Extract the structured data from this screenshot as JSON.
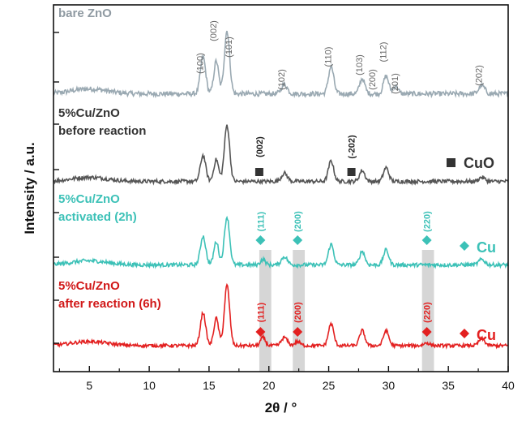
{
  "chart_data": {
    "type": "line",
    "title": "",
    "xlabel": "2θ / °",
    "ylabel": "Intensity / a.u.",
    "xlim": [
      2,
      40
    ],
    "x_ticks": [
      5,
      10,
      15,
      20,
      25,
      30,
      35,
      40
    ],
    "x_tick_labels": [
      "5",
      "10",
      "15",
      "20",
      "25",
      "30",
      "35",
      "40"
    ],
    "y_tick_labels_visible": false,
    "grid": false,
    "highlight_bands_2theta": [
      [
        19.2,
        20.2
      ],
      [
        22.0,
        23.0
      ],
      [
        32.8,
        33.8
      ]
    ],
    "series": [
      {
        "id": "bare",
        "label_lines": [
          "bare ZnO"
        ],
        "color": "#9aa9b2",
        "label_color": "#8f9aa2",
        "baseline": 1.0,
        "noise": 0.09,
        "peaks": [
          {
            "x": 5.0,
            "h": 0.18,
            "w": 1.5
          },
          {
            "x": 14.5,
            "h": 1.35,
            "w": 0.22
          },
          {
            "x": 15.6,
            "h": 1.2,
            "w": 0.2
          },
          {
            "x": 16.5,
            "h": 2.3,
            "w": 0.22
          },
          {
            "x": 21.3,
            "h": 0.35,
            "w": 0.25
          },
          {
            "x": 25.2,
            "h": 1.0,
            "w": 0.22
          },
          {
            "x": 27.8,
            "h": 0.55,
            "w": 0.22
          },
          {
            "x": 29.8,
            "h": 0.65,
            "w": 0.22
          },
          {
            "x": 30.6,
            "h": 0.3,
            "w": 0.2
          },
          {
            "x": 37.8,
            "h": 0.3,
            "w": 0.25
          }
        ],
        "reflections": [
          {
            "x": 14.5,
            "label": "(100)"
          },
          {
            "x": 15.6,
            "label": "(002)"
          },
          {
            "x": 16.9,
            "label": "(101)"
          },
          {
            "x": 21.3,
            "label": "(102)"
          },
          {
            "x": 25.2,
            "label": "(110)"
          },
          {
            "x": 27.8,
            "label": "(103)"
          },
          {
            "x": 28.9,
            "label": "(200)"
          },
          {
            "x": 29.8,
            "label": "(112)"
          },
          {
            "x": 30.8,
            "label": "(201)"
          },
          {
            "x": 37.8,
            "label": "(202)"
          }
        ],
        "reference_label": ""
      },
      {
        "id": "before",
        "label_lines": [
          "5%Cu/ZnO",
          "before reaction"
        ],
        "color": "#555555",
        "label_color": "#333333",
        "baseline": 3.95,
        "noise": 0.07,
        "peaks": [
          {
            "x": 5.0,
            "h": 0.15,
            "w": 1.5
          },
          {
            "x": 14.5,
            "h": 0.95,
            "w": 0.22
          },
          {
            "x": 15.6,
            "h": 0.8,
            "w": 0.2
          },
          {
            "x": 16.5,
            "h": 2.05,
            "w": 0.22
          },
          {
            "x": 21.3,
            "h": 0.3,
            "w": 0.25
          },
          {
            "x": 25.2,
            "h": 0.75,
            "w": 0.22
          },
          {
            "x": 27.8,
            "h": 0.4,
            "w": 0.22
          },
          {
            "x": 29.8,
            "h": 0.5,
            "w": 0.22
          },
          {
            "x": 37.8,
            "h": 0.15,
            "w": 0.25
          }
        ],
        "reflections": [
          {
            "x": 19.2,
            "label": "(002)"
          },
          {
            "x": 26.9,
            "label": "(-202)"
          }
        ],
        "reference_label": "CuO"
      },
      {
        "id": "activated",
        "label_lines": [
          "5%Cu/ZnO",
          "activated (2h)"
        ],
        "color": "#3cc1b7",
        "label_color": "#3cc1b7",
        "baseline": 6.9,
        "noise": 0.07,
        "peaks": [
          {
            "x": 5.0,
            "h": 0.15,
            "w": 1.5
          },
          {
            "x": 14.5,
            "h": 1.05,
            "w": 0.22
          },
          {
            "x": 15.6,
            "h": 0.85,
            "w": 0.2
          },
          {
            "x": 16.5,
            "h": 1.75,
            "w": 0.22
          },
          {
            "x": 19.5,
            "h": 0.2,
            "w": 0.2
          },
          {
            "x": 21.3,
            "h": 0.3,
            "w": 0.25
          },
          {
            "x": 25.2,
            "h": 0.75,
            "w": 0.22
          },
          {
            "x": 27.8,
            "h": 0.5,
            "w": 0.22
          },
          {
            "x": 29.8,
            "h": 0.55,
            "w": 0.22
          },
          {
            "x": 37.8,
            "h": 0.2,
            "w": 0.25
          }
        ],
        "reflections": [
          {
            "x": 19.3,
            "label": "(111)"
          },
          {
            "x": 22.4,
            "label": "(200)"
          },
          {
            "x": 33.2,
            "label": "(220)"
          }
        ],
        "reference_label": "Cu"
      },
      {
        "id": "after",
        "label_lines": [
          "5%Cu/ZnO",
          "after reaction (6h)"
        ],
        "color": "#e32020",
        "label_color": "#d11818",
        "baseline": 9.85,
        "noise": 0.06,
        "peaks": [
          {
            "x": 5.0,
            "h": 0.15,
            "w": 1.5
          },
          {
            "x": 14.5,
            "h": 1.2,
            "w": 0.22
          },
          {
            "x": 15.6,
            "h": 1.0,
            "w": 0.2
          },
          {
            "x": 16.5,
            "h": 2.2,
            "w": 0.22
          },
          {
            "x": 19.5,
            "h": 0.3,
            "w": 0.2
          },
          {
            "x": 21.3,
            "h": 0.3,
            "w": 0.25
          },
          {
            "x": 22.4,
            "h": 0.15,
            "w": 0.22
          },
          {
            "x": 25.2,
            "h": 0.8,
            "w": 0.22
          },
          {
            "x": 27.8,
            "h": 0.55,
            "w": 0.22
          },
          {
            "x": 29.8,
            "h": 0.55,
            "w": 0.22
          },
          {
            "x": 33.2,
            "h": 0.1,
            "w": 0.25
          },
          {
            "x": 37.8,
            "h": 0.25,
            "w": 0.25
          }
        ],
        "reflections": [
          {
            "x": 19.3,
            "label": "(111)"
          },
          {
            "x": 22.4,
            "label": "(200)"
          },
          {
            "x": 33.2,
            "label": "(220)"
          }
        ],
        "reference_label": "Cu"
      }
    ]
  }
}
